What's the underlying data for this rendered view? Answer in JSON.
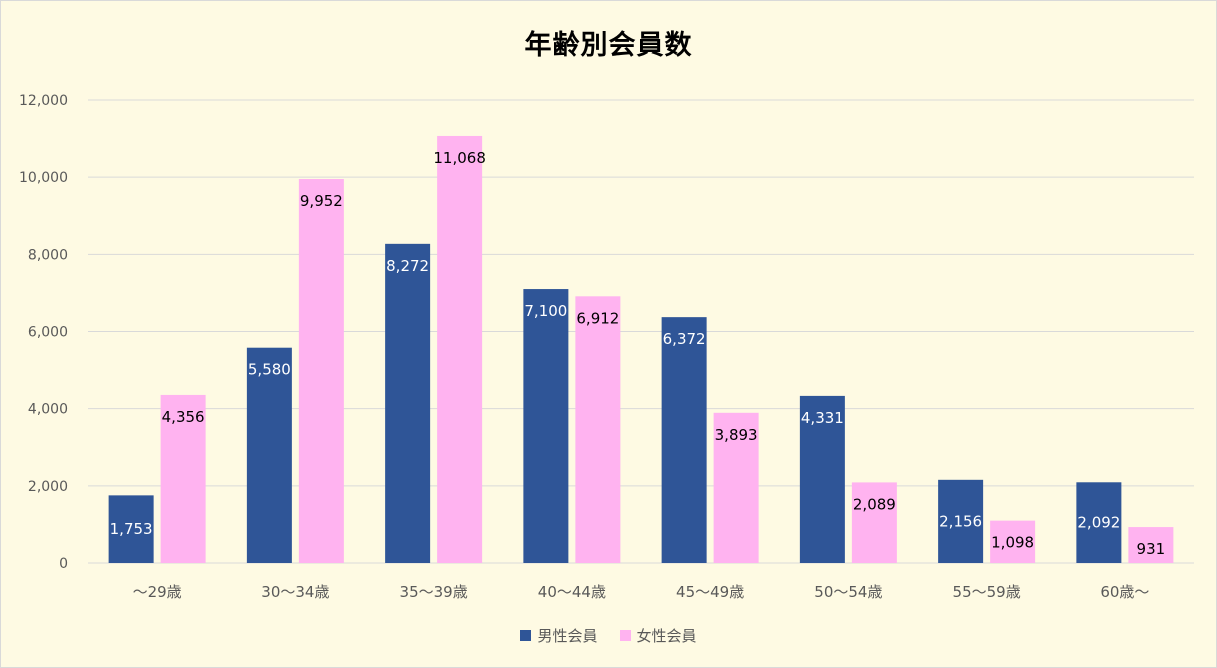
{
  "colors": {
    "background": "#fefae3",
    "gridline": "#d9d9d9",
    "male": "#2f5597",
    "female": "#ffb3f0",
    "axis_text": "#595959",
    "male_label": "#ffffff",
    "female_label": "#000000"
  },
  "chart_data": {
    "type": "bar",
    "title": "年齢別会員数",
    "categories": [
      "～29歳",
      "30～34歳",
      "35～39歳",
      "40～44歳",
      "45～49歳",
      "50～54歳",
      "55～59歳",
      "60歳～"
    ],
    "series": [
      {
        "name": "男性会員",
        "values": [
          1753,
          5580,
          8272,
          7100,
          6372,
          4331,
          2156,
          2092
        ]
      },
      {
        "name": "女性会員",
        "values": [
          4356,
          9952,
          11068,
          6912,
          3893,
          2089,
          1098,
          931
        ]
      }
    ],
    "data_labels": [
      [
        "1,753",
        "5,580",
        "8,272",
        "7,100",
        "6,372",
        "4,331",
        "2,156",
        "2,092"
      ],
      [
        "4,356",
        "9,952",
        "11,068",
        "6,912",
        "3,893",
        "2,089",
        "1,098",
        "931"
      ]
    ],
    "ylim": [
      0,
      12000
    ],
    "y_ticks": [
      0,
      2000,
      4000,
      6000,
      8000,
      10000,
      12000
    ],
    "y_tick_labels": [
      "0",
      "2,000",
      "4,000",
      "6,000",
      "8,000",
      "10,000",
      "12,000"
    ],
    "grid": true,
    "legend_position": "bottom"
  }
}
